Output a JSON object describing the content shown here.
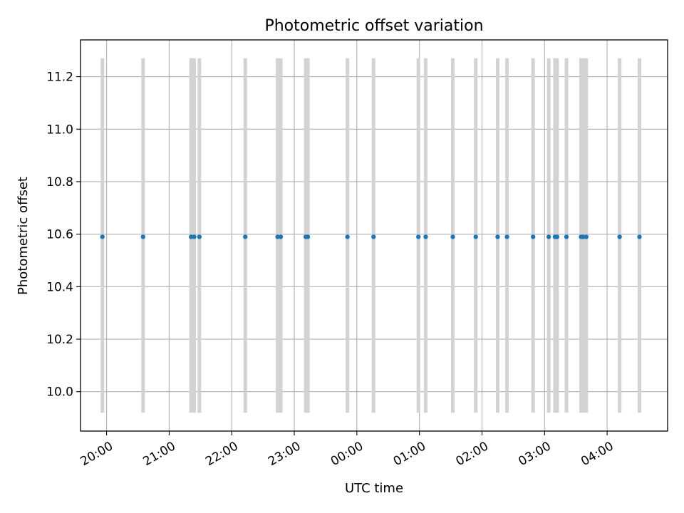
{
  "chart_data": {
    "type": "scatter",
    "title": "Photometric offset variation",
    "xlabel": "UTC time",
    "ylabel": "Photometric offset",
    "x_axis": {
      "type": "time",
      "range": [
        "19:35",
        "04:58"
      ],
      "ticks": [
        "20:00",
        "21:00",
        "22:00",
        "23:00",
        "00:00",
        "01:00",
        "02:00",
        "03:00",
        "04:00"
      ]
    },
    "y_axis": {
      "range": [
        9.85,
        11.34
      ],
      "ticks": [
        "10.0",
        "10.2",
        "10.4",
        "10.6",
        "10.8",
        "11.0",
        "11.2"
      ]
    },
    "grid": true,
    "observation_bands": {
      "color": "#d3d3d3",
      "y_range": [
        9.92,
        11.27
      ]
    },
    "series": [
      {
        "color": "#1f77b4",
        "points": [
          {
            "x": "19:56",
            "y": 10.59
          },
          {
            "x": "20:35",
            "y": 10.59
          },
          {
            "x": "21:21",
            "y": 10.59
          },
          {
            "x": "21:24",
            "y": 10.59
          },
          {
            "x": "21:29",
            "y": 10.59
          },
          {
            "x": "22:13",
            "y": 10.59
          },
          {
            "x": "22:44",
            "y": 10.59
          },
          {
            "x": "22:47",
            "y": 10.59
          },
          {
            "x": "23:11",
            "y": 10.59
          },
          {
            "x": "23:13",
            "y": 10.59
          },
          {
            "x": "23:51",
            "y": 10.59
          },
          {
            "x": "00:16",
            "y": 10.59
          },
          {
            "x": "00:59",
            "y": 10.59
          },
          {
            "x": "01:06",
            "y": 10.59
          },
          {
            "x": "01:32",
            "y": 10.59
          },
          {
            "x": "01:54",
            "y": 10.59
          },
          {
            "x": "02:15",
            "y": 10.59
          },
          {
            "x": "02:24",
            "y": 10.59
          },
          {
            "x": "02:49",
            "y": 10.59
          },
          {
            "x": "03:04",
            "y": 10.59
          },
          {
            "x": "03:10",
            "y": 10.59
          },
          {
            "x": "03:12",
            "y": 10.59
          },
          {
            "x": "03:21",
            "y": 10.59
          },
          {
            "x": "03:35",
            "y": 10.59
          },
          {
            "x": "03:37",
            "y": 10.59
          },
          {
            "x": "03:40",
            "y": 10.59
          },
          {
            "x": "04:12",
            "y": 10.59
          },
          {
            "x": "04:31",
            "y": 10.59
          }
        ]
      }
    ]
  }
}
